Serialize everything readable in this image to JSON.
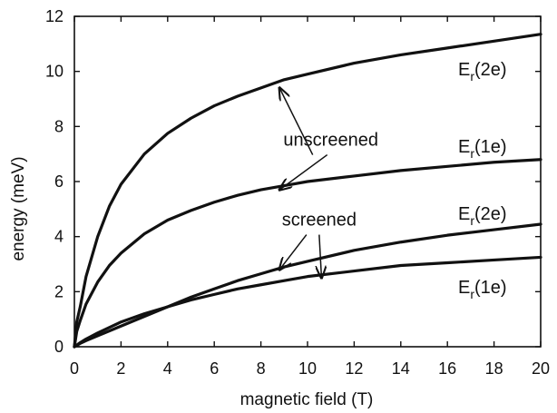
{
  "chart_data": {
    "type": "line",
    "xlabel": "magnetic field (T)",
    "ylabel": "energy (meV)",
    "xlim": [
      0,
      20
    ],
    "ylim": [
      0,
      12
    ],
    "x_ticks": [
      0,
      2,
      4,
      6,
      8,
      10,
      12,
      14,
      16,
      18,
      20
    ],
    "y_ticks": [
      0,
      2,
      4,
      6,
      8,
      10,
      12
    ],
    "grid": false,
    "legend": "none",
    "series": [
      {
        "name": "Er(2e)",
        "group": "unscreened",
        "x": [
          0,
          0.1,
          0.25,
          0.5,
          1,
          1.5,
          2,
          3,
          4,
          5,
          6,
          7,
          8,
          9,
          10,
          12,
          14,
          16,
          18,
          20
        ],
        "values": [
          0,
          0.9,
          1.45,
          2.55,
          4.0,
          5.1,
          5.9,
          7.0,
          7.75,
          8.3,
          8.75,
          9.1,
          9.4,
          9.7,
          9.9,
          10.3,
          10.6,
          10.85,
          11.1,
          11.35
        ]
      },
      {
        "name": "Er(1e)",
        "group": "unscreened",
        "x": [
          0,
          0.1,
          0.25,
          0.5,
          1,
          1.5,
          2,
          3,
          4,
          5,
          6,
          7,
          8,
          9,
          10,
          12,
          14,
          16,
          18,
          20
        ],
        "values": [
          0,
          0.55,
          0.95,
          1.55,
          2.35,
          2.95,
          3.4,
          4.1,
          4.6,
          4.95,
          5.25,
          5.5,
          5.7,
          5.85,
          6.0,
          6.2,
          6.4,
          6.55,
          6.7,
          6.8
        ]
      },
      {
        "name": "Er(2e)",
        "group": "screened",
        "x": [
          0,
          0.25,
          0.5,
          1,
          2,
          3,
          4,
          5,
          6,
          7,
          8,
          9,
          10,
          12,
          14,
          16,
          18,
          20
        ],
        "values": [
          0,
          0.12,
          0.22,
          0.4,
          0.75,
          1.1,
          1.45,
          1.8,
          2.1,
          2.4,
          2.65,
          2.9,
          3.1,
          3.5,
          3.8,
          4.05,
          4.25,
          4.45
        ]
      },
      {
        "name": "Er(1e)",
        "group": "screened",
        "x": [
          0,
          0.25,
          0.5,
          1,
          2,
          3,
          4,
          5,
          6,
          7,
          8,
          9,
          10,
          12,
          14,
          16,
          18,
          20
        ],
        "values": [
          0,
          0.15,
          0.28,
          0.5,
          0.9,
          1.2,
          1.45,
          1.7,
          1.9,
          2.1,
          2.25,
          2.4,
          2.55,
          2.75,
          2.95,
          3.05,
          3.15,
          3.25
        ]
      }
    ],
    "annotations": [
      {
        "text": "unscreened",
        "text_at": [
          11.0,
          7.3
        ],
        "arrows_to": [
          [
            8.8,
            9.4
          ],
          [
            8.8,
            5.7
          ]
        ]
      },
      {
        "text": "screened",
        "text_at": [
          10.5,
          4.4
        ],
        "arrows_to": [
          [
            8.8,
            2.8
          ],
          [
            10.6,
            2.5
          ]
        ]
      }
    ],
    "series_labels": [
      {
        "base": "E",
        "sub": "r",
        "tail": "(2e)",
        "series_index": 0
      },
      {
        "base": "E",
        "sub": "r",
        "tail": "(1e)",
        "series_index": 1
      },
      {
        "base": "E",
        "sub": "r",
        "tail": "(2e)",
        "series_index": 2
      },
      {
        "base": "E",
        "sub": "r",
        "tail": "(1e)",
        "series_index": 3
      }
    ]
  }
}
